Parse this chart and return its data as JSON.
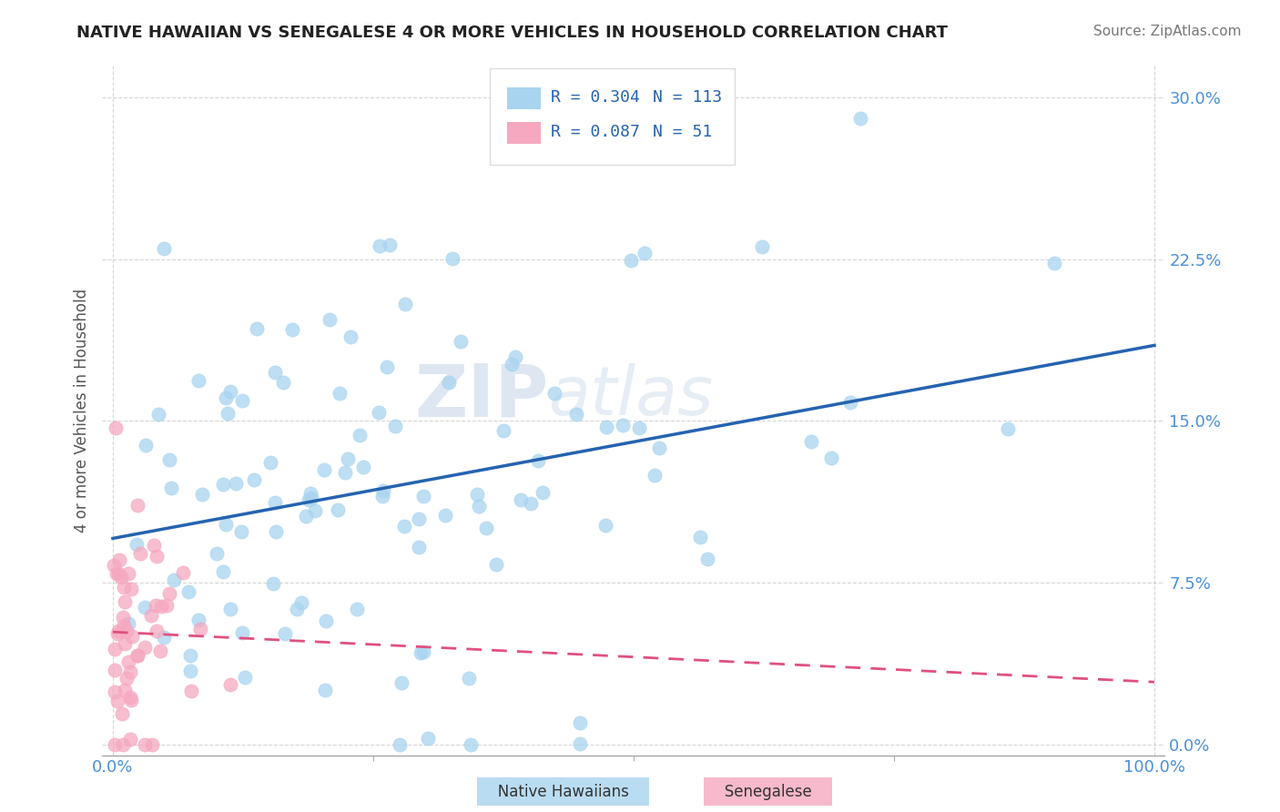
{
  "title": "NATIVE HAWAIIAN VS SENEGALESE 4 OR MORE VEHICLES IN HOUSEHOLD CORRELATION CHART",
  "source": "Source: ZipAtlas.com",
  "ylabel": "4 or more Vehicles in Household",
  "ytick_labels": [
    "0.0%",
    "7.5%",
    "15.0%",
    "22.5%",
    "30.0%"
  ],
  "ytick_values": [
    0.0,
    0.075,
    0.15,
    0.225,
    0.3
  ],
  "legend_entries": [
    "Native Hawaiians",
    "Senegalese"
  ],
  "R_hawaiian": 0.304,
  "N_hawaiian": 113,
  "R_senegalese": 0.087,
  "N_senegalese": 51,
  "color_hawaiian": "#a8d4f0",
  "color_senegalese": "#f5a8c0",
  "line_color_hawaiian": "#2563b0",
  "line_color_senegalese": "#e05080",
  "tick_color": "#4a90d9",
  "background_color": "#FFFFFF",
  "grid_color": "#CCCCCC"
}
